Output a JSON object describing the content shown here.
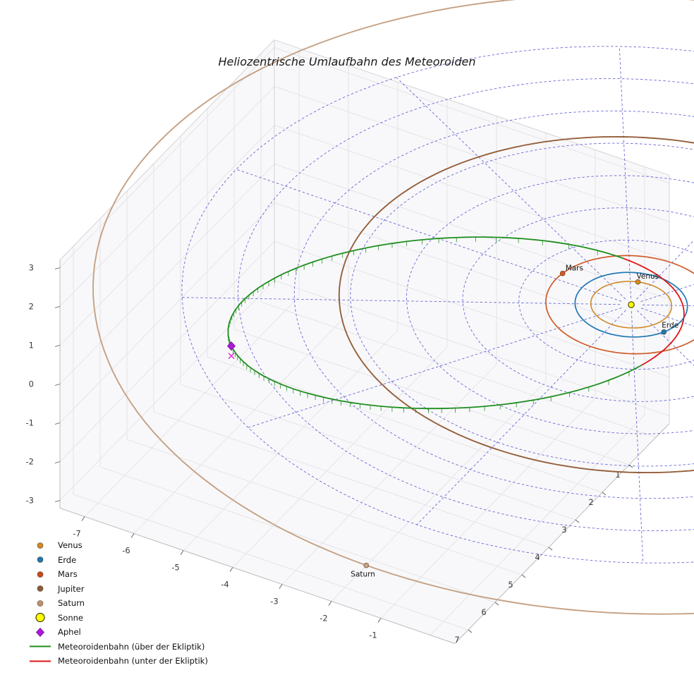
{
  "chart_data": {
    "type": "3d-orbit-plot",
    "title": "Heliozentrische Umlaufbahn des Meteoroiden",
    "axes": {
      "x_ticks": [
        -7,
        -6,
        -5,
        -4,
        -3,
        -2,
        -1
      ],
      "y_ticks": [
        1,
        2,
        3,
        4,
        5,
        6,
        7
      ],
      "z_ticks": [
        3,
        2,
        1,
        0,
        -1,
        -2,
        -3
      ],
      "x_range": [
        -7.5,
        0.5
      ],
      "y_range": [
        -0.5,
        7.5
      ],
      "z_range": [
        -3.2,
        3.2
      ],
      "grid": true
    },
    "ecliptic_grid": {
      "circle_radii": [
        1,
        2,
        3,
        4,
        5,
        6,
        7,
        8
      ],
      "spoke_step_deg": 30,
      "color": "#4343cd"
    },
    "sun": {
      "label": "Sonne",
      "color": "#ffff00",
      "edge_color": "#3f3f00"
    },
    "planets": [
      {
        "name": "Venus",
        "orbit_radius_au": 0.72,
        "angle_deg": 251,
        "color": "#cf8a28",
        "show_label": true,
        "label_offset": [
          -2,
          -5
        ]
      },
      {
        "name": "Erde",
        "orbit_radius_au": 1.0,
        "angle_deg": 26,
        "color": "#1f77b4",
        "show_label": true,
        "label_offset": [
          -3,
          -6
        ]
      },
      {
        "name": "Mars",
        "orbit_radius_au": 1.52,
        "angle_deg": 188,
        "color": "#d05a28",
        "show_label": true,
        "label_offset": [
          4,
          -4
        ]
      },
      {
        "name": "Jupiter",
        "orbit_radius_au": 5.2,
        "angle_deg": -25,
        "color": "#955f3b",
        "show_label": false,
        "label_offset": [
          0,
          0
        ]
      },
      {
        "name": "Saturn",
        "orbit_radius_au": 9.58,
        "angle_deg": 91,
        "color": "#c5a184",
        "show_label": true,
        "label_offset": [
          -22,
          16
        ]
      }
    ],
    "meteoroid_orbit": {
      "semi_major_axis_au": 4.15,
      "eccentricity": 0.78,
      "perihelion_angle_deg": -44,
      "inclination_deg": 2,
      "node_true_anomaly_deg": 100,
      "above_color": "#1f8f1f",
      "below_color": "#e11414",
      "aphel_label": "Aphel",
      "aphel_color": "#ac19d8",
      "aphel_cross_color": "#e23bd8"
    },
    "legend": [
      {
        "label": "Venus",
        "marker": "dot",
        "color": "#cf8a28"
      },
      {
        "label": "Erde",
        "marker": "dot",
        "color": "#1f77b4"
      },
      {
        "label": "Mars",
        "marker": "dot",
        "color": "#c74a1f"
      },
      {
        "label": "Jupiter",
        "marker": "dot",
        "color": "#8c5a3c"
      },
      {
        "label": "Saturn",
        "marker": "dot",
        "color": "#bd9270"
      },
      {
        "label": "Sonne",
        "marker": "sun",
        "color": "#ffff00"
      },
      {
        "label": "Aphel",
        "marker": "diamond",
        "color": "#ac19d8"
      },
      {
        "label": "Meteoroidenbahn (über der Ekliptik)",
        "marker": "line",
        "color": "#1f8f1f"
      },
      {
        "label": "Meteoroidenbahn (unter der Ekliptik)",
        "marker": "line",
        "color": "#e11414"
      }
    ]
  }
}
